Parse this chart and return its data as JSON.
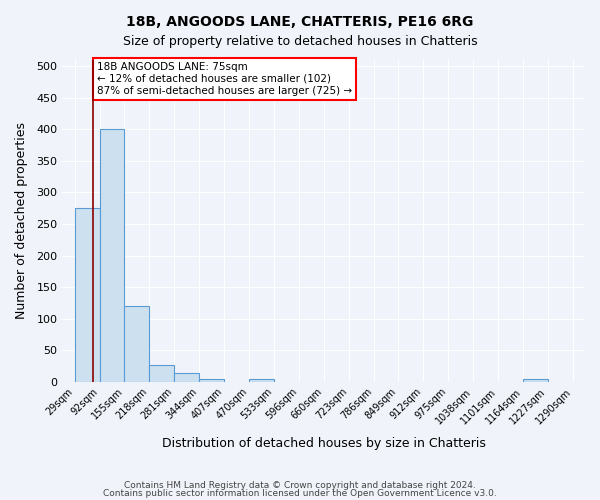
{
  "title": "18B, ANGOODS LANE, CHATTERIS, PE16 6RG",
  "subtitle": "Size of property relative to detached houses in Chatteris",
  "xlabel": "Distribution of detached houses by size in Chatteris",
  "ylabel": "Number of detached properties",
  "bin_edges": [
    29,
    92,
    155,
    218,
    281,
    344,
    407,
    470,
    533,
    596,
    660,
    723,
    786,
    849,
    912,
    975,
    1038,
    1101,
    1164,
    1227,
    1290
  ],
  "bin_labels": [
    "29sqm",
    "92sqm",
    "155sqm",
    "218sqm",
    "281sqm",
    "344sqm",
    "407sqm",
    "470sqm",
    "533sqm",
    "596sqm",
    "660sqm",
    "723sqm",
    "786sqm",
    "849sqm",
    "912sqm",
    "975sqm",
    "1038sqm",
    "1101sqm",
    "1164sqm",
    "1227sqm",
    "1290sqm"
  ],
  "counts": [
    275,
    400,
    120,
    27,
    14,
    5,
    0,
    5,
    0,
    0,
    0,
    0,
    0,
    0,
    0,
    0,
    0,
    0,
    5,
    0
  ],
  "bar_fill": "#cce0f0",
  "bar_edge": "#5b9bd5",
  "vline_x": 75,
  "vline_color": "#8b0000",
  "annotation_text": "18B ANGOODS LANE: 75sqm\n← 12% of detached houses are smaller (102)\n87% of semi-detached houses are larger (725) →",
  "annotation_box_color": "white",
  "annotation_box_edge": "red",
  "ylim": [
    0,
    510
  ],
  "yticks": [
    0,
    50,
    100,
    150,
    200,
    250,
    300,
    350,
    400,
    450,
    500
  ],
  "footer1": "Contains HM Land Registry data © Crown copyright and database right 2024.",
  "footer2": "Contains public sector information licensed under the Open Government Licence v3.0.",
  "bg_color": "#f0f4fa",
  "grid_color": "white"
}
